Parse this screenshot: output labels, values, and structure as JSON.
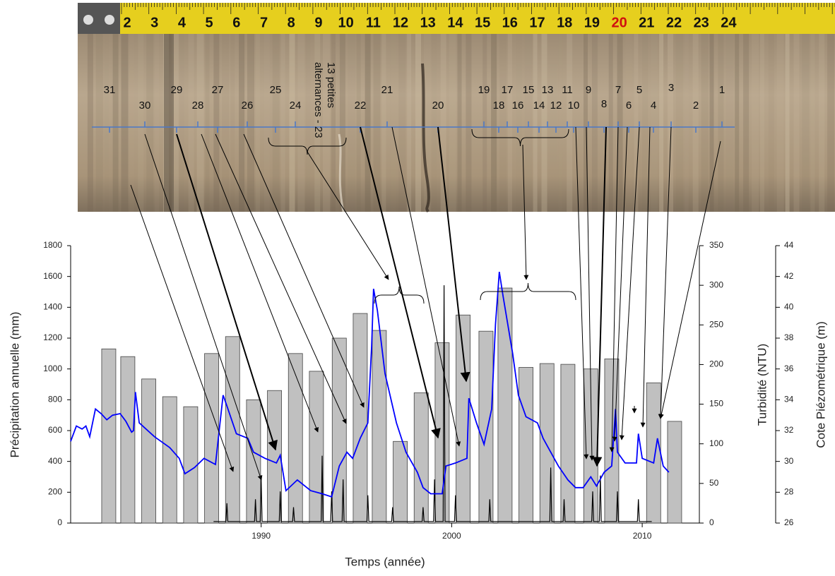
{
  "photo": {
    "tape_labels": [
      2,
      3,
      4,
      5,
      6,
      7,
      8,
      9,
      10,
      11,
      12,
      13,
      14,
      15,
      16,
      17,
      18,
      19,
      20,
      21,
      22,
      23,
      24
    ],
    "layer_labels": [
      31,
      30,
      29,
      28,
      27,
      26,
      25,
      24,
      22,
      21,
      20,
      19,
      18,
      17,
      16,
      15,
      14,
      13,
      12,
      11,
      10,
      9,
      8,
      7,
      6,
      5,
      4,
      3,
      2,
      1
    ],
    "group_label": [
      "13 petites",
      "alternances - 23"
    ]
  },
  "chart_data": {
    "type": "bar",
    "xlabel": "Temps (année)",
    "ylabel": "Précipitation annuelle (mm)",
    "y2label": "Turbidité (NTU)",
    "y3label": "Cote Piézométrique (m)",
    "xlim": [
      1980,
      2013
    ],
    "xticks": [
      1990,
      2000,
      2010
    ],
    "ylim": [
      0,
      1800
    ],
    "yticks": [
      0,
      200,
      400,
      600,
      800,
      1000,
      1200,
      1400,
      1600,
      1800
    ],
    "y2lim": [
      0,
      350
    ],
    "y2ticks": [
      0,
      50,
      100,
      150,
      200,
      250,
      300,
      350
    ],
    "y3lim": [
      26,
      44
    ],
    "y3ticks": [
      26,
      28,
      30,
      32,
      34,
      36,
      38,
      40,
      42,
      44
    ],
    "series": [
      {
        "type": "bar",
        "color": "#c0c0c0",
        "x": [
          1982.0,
          1983.0,
          1984.1,
          1985.2,
          1986.3,
          1987.4,
          1988.5,
          1989.6,
          1990.7,
          1991.8,
          1992.9,
          1994.1,
          1995.2,
          1996.2,
          1997.3,
          1998.4,
          1999.5,
          2000.6,
          2001.8,
          2002.8,
          2003.9,
          2005.0,
          2006.1,
          2007.3,
          2008.4,
          2010.6,
          2011.7
        ],
        "values": [
          1130,
          1080,
          935,
          820,
          755,
          1100,
          1210,
          800,
          860,
          1100,
          985,
          1200,
          1360,
          1250,
          530,
          845,
          1170,
          1350,
          1245,
          1525,
          1010,
          1035,
          1030,
          1000,
          1065,
          910,
          660
        ]
      },
      {
        "type": "line",
        "axis": "y2",
        "color": "#000000",
        "x": [
          1987.5,
          1988.15,
          1988.2,
          1988.25,
          1989.65,
          1989.7,
          1989.75,
          1989.95,
          1990.0,
          1990.05,
          1990.95,
          1991.0,
          1991.05,
          1991.65,
          1991.7,
          1991.75,
          1993.15,
          1993.2,
          1993.25,
          1993.65,
          1993.7,
          1993.75,
          1994.25,
          1994.3,
          1994.35,
          1995.55,
          1995.6,
          1995.65,
          1996.85,
          1996.9,
          1996.95,
          1998.45,
          1998.5,
          1998.55,
          1999.05,
          1999.1,
          1999.15,
          1999.55,
          1999.6,
          1999.65,
          2000.15,
          2000.2,
          2000.25,
          2001.95,
          2002.0,
          2002.05,
          2005.15,
          2005.2,
          2005.25,
          2005.85,
          2005.9,
          2005.95,
          2007.35,
          2007.4,
          2007.45,
          2007.75,
          2007.8,
          2007.85,
          2008.65,
          2008.7,
          2008.75,
          2009.75,
          2009.8,
          2009.85,
          2010.5
        ],
        "values": [
          2,
          2,
          25,
          2,
          2,
          30,
          2,
          2,
          55,
          2,
          2,
          40,
          2,
          2,
          20,
          2,
          2,
          85,
          2,
          2,
          40,
          2,
          2,
          55,
          2,
          2,
          35,
          2,
          2,
          20,
          2,
          2,
          20,
          2,
          2,
          55,
          2,
          2,
          300,
          2,
          2,
          35,
          2,
          2,
          30,
          2,
          2,
          70,
          2,
          2,
          30,
          2,
          2,
          40,
          2,
          2,
          60,
          2,
          2,
          40,
          2,
          2,
          30,
          2,
          2
        ]
      },
      {
        "type": "line",
        "axis": "y3",
        "color": "#0000ff",
        "x": [
          1980.0,
          1980.3,
          1980.6,
          1980.8,
          1981.0,
          1981.3,
          1981.6,
          1981.9,
          1982.2,
          1982.6,
          1982.9,
          1983.2,
          1983.3,
          1983.4,
          1983.6,
          1984.4,
          1985.2,
          1985.7,
          1986.0,
          1986.5,
          1987.0,
          1987.6,
          1988.0,
          1988.2,
          1988.7,
          1989.3,
          1989.6,
          1990.2,
          1990.8,
          1991.0,
          1991.3,
          1991.9,
          1992.6,
          1993.2,
          1993.7,
          1994.1,
          1994.5,
          1994.8,
          1995.2,
          1995.6,
          1995.8,
          1995.9,
          1996.1,
          1996.5,
          1997.1,
          1997.6,
          1998.2,
          1998.5,
          1998.9,
          1999.5,
          1999.7,
          2000.2,
          2000.8,
          2000.9,
          2001.3,
          2001.7,
          2002.1,
          2002.3,
          2002.5,
          2002.7,
          2003.2,
          2003.5,
          2003.9,
          2004.5,
          2004.8,
          2005.2,
          2005.6,
          2006.1,
          2006.5,
          2006.9,
          2007.3,
          2007.6,
          2008.0,
          2008.4,
          2008.6,
          2008.7,
          2009.1,
          2009.7,
          2009.8,
          2010.0,
          2010.6,
          2010.8,
          2011.1,
          2011.4
        ],
        "values": [
          31.3,
          32.3,
          32.1,
          32.3,
          31.6,
          33.4,
          33.1,
          32.7,
          33.0,
          33.1,
          32.6,
          31.9,
          32.0,
          34.5,
          32.5,
          31.6,
          30.9,
          30.2,
          29.2,
          29.6,
          30.2,
          29.8,
          34.3,
          33.6,
          31.8,
          31.5,
          30.6,
          30.2,
          29.9,
          30.4,
          28.1,
          28.8,
          28.1,
          27.9,
          27.7,
          29.7,
          30.6,
          30.2,
          31.5,
          32.5,
          37.5,
          41.2,
          39.8,
          35.7,
          32.5,
          30.6,
          29.3,
          28.3,
          27.9,
          27.9,
          29.7,
          29.9,
          30.2,
          34.1,
          32.5,
          31.1,
          33.4,
          38.9,
          42.3,
          40.7,
          37.0,
          34.3,
          32.9,
          32.5,
          31.5,
          30.6,
          29.7,
          28.8,
          28.3,
          28.3,
          29.0,
          28.4,
          29.3,
          29.7,
          33.4,
          30.6,
          29.9,
          29.9,
          31.8,
          30.2,
          29.9,
          31.5,
          29.7,
          29.3
        ]
      }
    ]
  }
}
